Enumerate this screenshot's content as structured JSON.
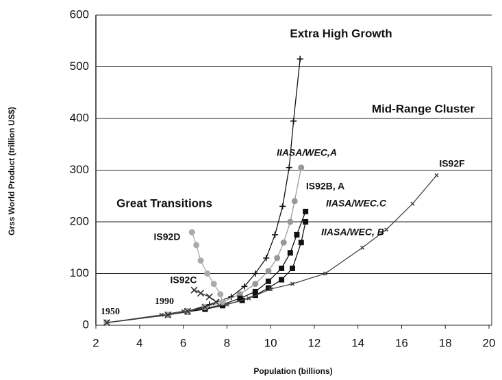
{
  "chart_data": {
    "type": "scatter",
    "xlabel": "Population (billions)",
    "ylabel": "Grss World Product (trillion US$)",
    "xlim": [
      2,
      20
    ],
    "xticks": [
      2,
      4,
      6,
      8,
      10,
      12,
      14,
      16,
      18,
      20
    ],
    "ylim": [
      0,
      600
    ],
    "yticks": [
      0,
      100,
      200,
      300,
      400,
      500,
      600
    ],
    "grid": true,
    "annotations": [
      "Extra High Growth",
      "Mid-Range Cluster",
      "Great Transitions",
      "1990",
      "1950"
    ],
    "series": [
      {
        "name": "IIASA/WEC,A",
        "color": "#111111",
        "marker": "plus",
        "x": [
          2.5,
          5.3,
          6.2,
          7.2,
          8.2,
          8.8,
          9.3,
          9.8,
          10.2,
          10.55,
          10.85,
          11.05,
          11.35
        ],
        "values": [
          5,
          20,
          27,
          40,
          55,
          75,
          100,
          130,
          175,
          230,
          305,
          395,
          515
        ]
      },
      {
        "name": "IS92B, A",
        "color": "#999999",
        "marker": "circle",
        "x": [
          2.5,
          5.3,
          6.2,
          7,
          7.8,
          8.6,
          9.3,
          9.9,
          10.3,
          10.6,
          10.9,
          11.1,
          11.4
        ],
        "values": [
          5,
          20,
          27,
          35,
          45,
          60,
          80,
          105,
          130,
          160,
          200,
          240,
          305
        ]
      },
      {
        "name": "IIASA/WEC.C",
        "color": "#111111",
        "marker": "square",
        "x": [
          2.5,
          5.3,
          6.2,
          7,
          7.8,
          8.6,
          9.3,
          9.9,
          10.5,
          10.9,
          11.2,
          11.6
        ],
        "values": [
          5,
          20,
          26,
          32,
          40,
          52,
          65,
          85,
          110,
          140,
          175,
          220
        ]
      },
      {
        "name": "IIASA/WEC, B",
        "color": "#111111",
        "marker": "square",
        "x": [
          2.5,
          5.3,
          6.2,
          7,
          7.8,
          8.7,
          9.3,
          9.9,
          10.5,
          11,
          11.4,
          11.6
        ],
        "values": [
          5,
          20,
          26,
          31,
          38,
          48,
          58,
          72,
          88,
          110,
          160,
          200
        ]
      },
      {
        "name": "IS92F",
        "color": "#444444",
        "marker": "small",
        "x": [
          2.5,
          5,
          6,
          7,
          8,
          9,
          10,
          11,
          12.5,
          14.2,
          15.3,
          16.5,
          17.6
        ],
        "values": [
          5,
          20,
          27,
          33,
          40,
          52,
          70,
          80,
          100,
          150,
          185,
          235,
          290
        ]
      },
      {
        "name": "IS92D",
        "color": "#aaaaaa",
        "marker": "circle",
        "x": [
          2.5,
          5.3,
          6.2,
          7,
          7.8,
          7.7,
          7.4,
          7.1,
          6.8,
          6.6,
          6.4
        ],
        "values": [
          5,
          20,
          27,
          35,
          45,
          60,
          80,
          100,
          125,
          155,
          180
        ]
      },
      {
        "name": "IS92C",
        "color": "#333333",
        "marker": "cross",
        "x": [
          2.5,
          5.3,
          6.2,
          7,
          7.5,
          7.2,
          6.8,
          6.5
        ],
        "values": [
          5,
          20,
          27,
          35,
          45,
          55,
          62,
          68
        ]
      }
    ]
  }
}
